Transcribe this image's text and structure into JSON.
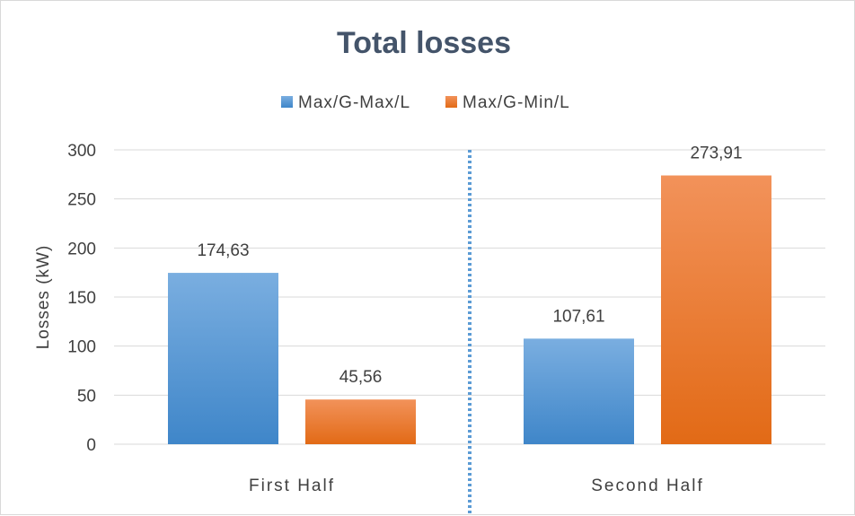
{
  "chart_data": {
    "type": "bar",
    "title": "Total losses",
    "xlabel": "",
    "ylabel": "Losses (kW)",
    "ylim": [
      0,
      300
    ],
    "yticks": [
      0,
      50,
      100,
      150,
      200,
      250,
      300
    ],
    "grid": true,
    "legend_position": "top",
    "categories": [
      "First Half",
      "Second Half"
    ],
    "series": [
      {
        "name": "Max/G-Max/L",
        "values": [
          174.63,
          107.61
        ],
        "labels": [
          "174,63",
          "107,61"
        ],
        "color": "#5b9bd5",
        "color_light": "#7aaee0",
        "color_dark": "#3f86c9"
      },
      {
        "name": "Max/G-Min/L",
        "values": [
          45.56,
          273.91
        ],
        "labels": [
          "45,56",
          "273,91"
        ],
        "color": "#ed7d31",
        "color_light": "#f2925a",
        "color_dark": "#e26a16"
      }
    ],
    "divider": {
      "style": "dotted",
      "color": "#5b9bd5"
    },
    "gridline_color": "#d9d9d9"
  }
}
